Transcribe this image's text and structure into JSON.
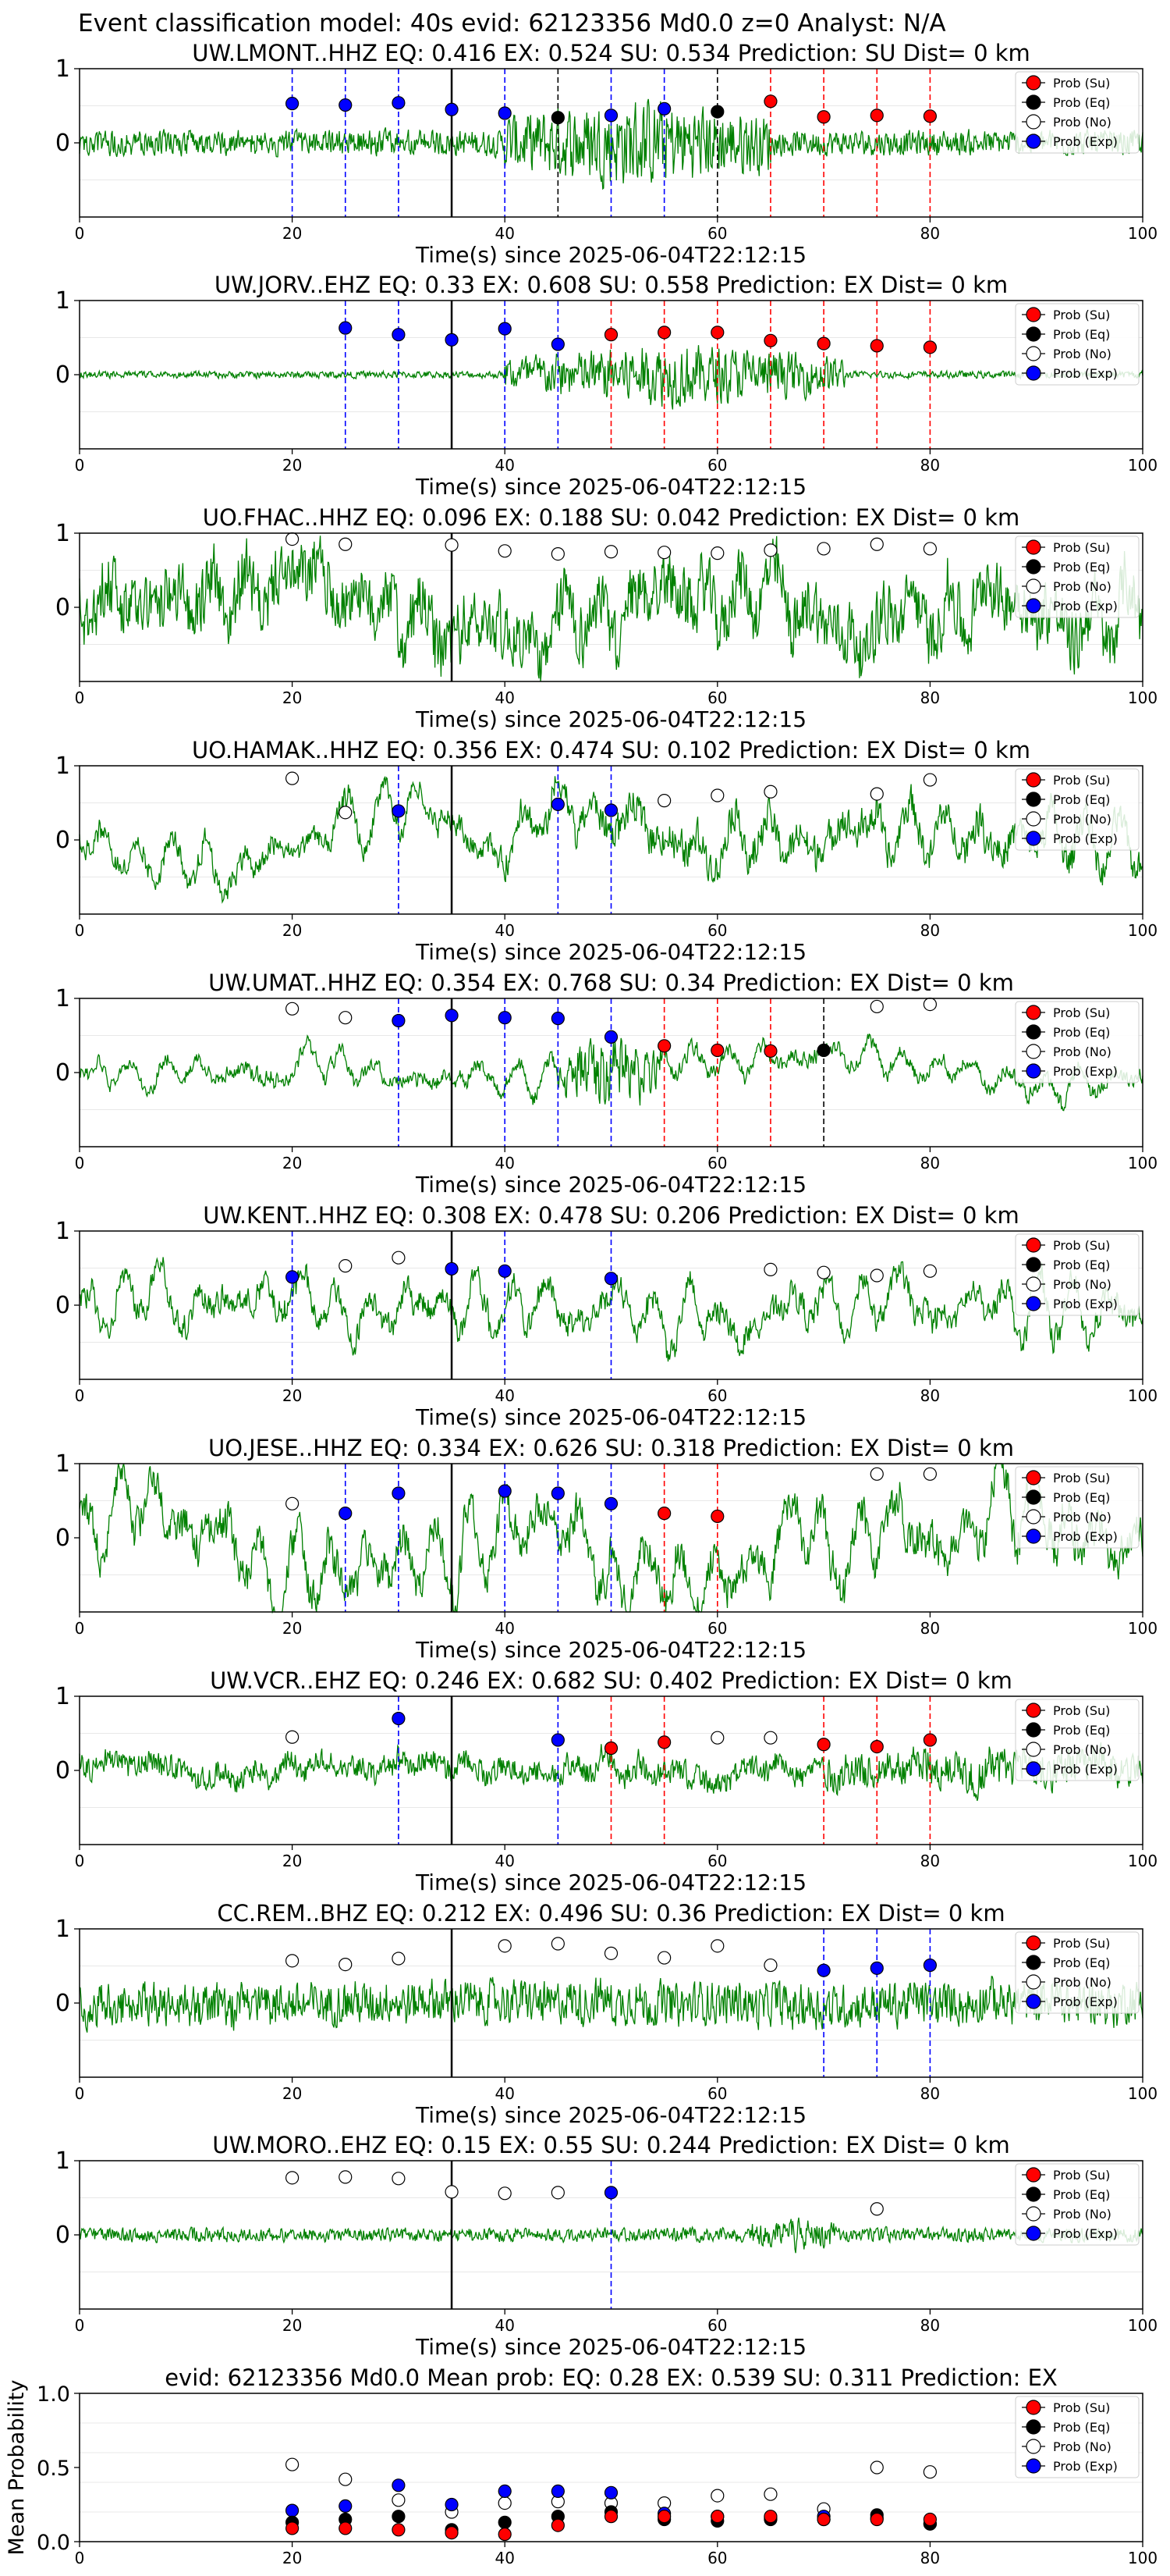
{
  "figure_title": "Event classification model: 40s evid: 62123356 Md0.0 z=0 Analyst: N/A",
  "legend_labels": [
    "Prob (Su)",
    "Prob (Eq)",
    "Prob (No)",
    "Prob (Exp)"
  ],
  "colors": {
    "su": "#ff0000",
    "eq": "#000000",
    "no": "#ffffff",
    "exp": "#0000ff",
    "trace": "#008000",
    "pick": "#000000"
  },
  "chart_data": [
    {
      "type": "line",
      "title": "UW.LMONT..HHZ   EQ: 0.416  EX: 0.524  SU: 0.534   Prediction: SU    Dist= 0 km",
      "xlabel": "Time(s) since 2025-06-04T22:12:15",
      "ylabel": "",
      "xlim": [
        0,
        100
      ],
      "ylim": [
        -1,
        1
      ],
      "xticks": [
        "0",
        "20",
        "40",
        "60",
        "80",
        "100"
      ],
      "yticks": [
        "0",
        "1"
      ],
      "pick_time": 35,
      "trace": {
        "seed": 1,
        "amplitude": 0.22,
        "burst": {
          "start": 40,
          "end": 65,
          "gain": 3.5
        },
        "lowfreq": 0
      },
      "points": [
        {
          "t": 20,
          "v": 0.53,
          "cls": "exp"
        },
        {
          "t": 25,
          "v": 0.51,
          "cls": "exp"
        },
        {
          "t": 30,
          "v": 0.54,
          "cls": "exp"
        },
        {
          "t": 35,
          "v": 0.45,
          "cls": "exp"
        },
        {
          "t": 40,
          "v": 0.4,
          "cls": "exp"
        },
        {
          "t": 45,
          "v": 0.34,
          "cls": "eq"
        },
        {
          "t": 50,
          "v": 0.37,
          "cls": "exp"
        },
        {
          "t": 55,
          "v": 0.46,
          "cls": "exp"
        },
        {
          "t": 60,
          "v": 0.42,
          "cls": "eq"
        },
        {
          "t": 65,
          "v": 0.56,
          "cls": "su"
        },
        {
          "t": 70,
          "v": 0.35,
          "cls": "su"
        },
        {
          "t": 75,
          "v": 0.37,
          "cls": "su"
        },
        {
          "t": 80,
          "v": 0.36,
          "cls": "su"
        }
      ]
    },
    {
      "type": "line",
      "title": "UW.JORV..EHZ   EQ: 0.33  EX: 0.608  SU: 0.558   Prediction: EX    Dist= 0 km",
      "xlabel": "Time(s) since 2025-06-04T22:12:15",
      "ylabel": "",
      "xlim": [
        0,
        100
      ],
      "ylim": [
        -1,
        1
      ],
      "xticks": [
        "0",
        "20",
        "40",
        "60",
        "80",
        "100"
      ],
      "yticks": [
        "0",
        "1"
      ],
      "pick_time": 35,
      "trace": {
        "seed": 2,
        "amplitude": 0.06,
        "burst": {
          "start": 40,
          "end": 72,
          "gain": 9
        },
        "lowfreq": 0
      },
      "points": [
        {
          "t": 25,
          "v": 0.63,
          "cls": "exp"
        },
        {
          "t": 30,
          "v": 0.54,
          "cls": "exp"
        },
        {
          "t": 35,
          "v": 0.47,
          "cls": "exp"
        },
        {
          "t": 40,
          "v": 0.62,
          "cls": "exp"
        },
        {
          "t": 45,
          "v": 0.41,
          "cls": "exp"
        },
        {
          "t": 50,
          "v": 0.54,
          "cls": "su"
        },
        {
          "t": 55,
          "v": 0.57,
          "cls": "su"
        },
        {
          "t": 60,
          "v": 0.57,
          "cls": "su"
        },
        {
          "t": 65,
          "v": 0.46,
          "cls": "su"
        },
        {
          "t": 70,
          "v": 0.42,
          "cls": "su"
        },
        {
          "t": 75,
          "v": 0.39,
          "cls": "su"
        },
        {
          "t": 80,
          "v": 0.37,
          "cls": "su"
        }
      ]
    },
    {
      "type": "line",
      "title": "UO.FHAC..HHZ   EQ: 0.096  EX: 0.188  SU: 0.042   Prediction: EX    Dist= 0 km",
      "xlabel": "Time(s) since 2025-06-04T22:12:15",
      "ylabel": "",
      "xlim": [
        0,
        100
      ],
      "ylim": [
        -1,
        1
      ],
      "xticks": [
        "0",
        "20",
        "40",
        "60",
        "80",
        "100"
      ],
      "yticks": [
        "0",
        "1"
      ],
      "pick_time": 35,
      "trace": {
        "seed": 3,
        "amplitude": 0.55,
        "burst": null,
        "lowfreq": 0.35
      },
      "points": [
        {
          "t": 20,
          "v": 0.92,
          "cls": "no"
        },
        {
          "t": 25,
          "v": 0.85,
          "cls": "no"
        },
        {
          "t": 35,
          "v": 0.84,
          "cls": "no"
        },
        {
          "t": 40,
          "v": 0.76,
          "cls": "no"
        },
        {
          "t": 45,
          "v": 0.72,
          "cls": "no"
        },
        {
          "t": 50,
          "v": 0.75,
          "cls": "no"
        },
        {
          "t": 55,
          "v": 0.74,
          "cls": "no"
        },
        {
          "t": 60,
          "v": 0.73,
          "cls": "no"
        },
        {
          "t": 65,
          "v": 0.77,
          "cls": "no"
        },
        {
          "t": 70,
          "v": 0.79,
          "cls": "no"
        },
        {
          "t": 75,
          "v": 0.85,
          "cls": "no"
        },
        {
          "t": 80,
          "v": 0.79,
          "cls": "no"
        }
      ]
    },
    {
      "type": "line",
      "title": "UO.HAMAK..HHZ   EQ: 0.356  EX: 0.474  SU: 0.102   Prediction: EX    Dist= 0 km",
      "xlabel": "Time(s) since 2025-06-04T22:12:15",
      "ylabel": "",
      "xlim": [
        0,
        100
      ],
      "ylim": [
        -1,
        1
      ],
      "xticks": [
        "0",
        "20",
        "40",
        "60",
        "80",
        "100"
      ],
      "yticks": [
        "0",
        "1"
      ],
      "pick_time": 35,
      "trace": {
        "seed": 4,
        "amplitude": 0.18,
        "burst": {
          "start": 40,
          "end": 100,
          "gain": 1.8
        },
        "lowfreq": 0.35
      },
      "points": [
        {
          "t": 20,
          "v": 0.83,
          "cls": "no"
        },
        {
          "t": 25,
          "v": 0.37,
          "cls": "no"
        },
        {
          "t": 30,
          "v": 0.39,
          "cls": "exp"
        },
        {
          "t": 45,
          "v": 0.48,
          "cls": "exp"
        },
        {
          "t": 50,
          "v": 0.4,
          "cls": "exp"
        },
        {
          "t": 55,
          "v": 0.53,
          "cls": "no"
        },
        {
          "t": 60,
          "v": 0.6,
          "cls": "no"
        },
        {
          "t": 65,
          "v": 0.65,
          "cls": "no"
        },
        {
          "t": 75,
          "v": 0.62,
          "cls": "no"
        },
        {
          "t": 80,
          "v": 0.81,
          "cls": "no"
        }
      ]
    },
    {
      "type": "line",
      "title": "UW.UMAT..HHZ   EQ: 0.354  EX: 0.768  SU: 0.34   Prediction: EX    Dist= 0 km",
      "xlabel": "Time(s) since 2025-06-04T22:12:15",
      "ylabel": "",
      "xlim": [
        0,
        100
      ],
      "ylim": [
        -1,
        1
      ],
      "xticks": [
        "0",
        "20",
        "40",
        "60",
        "80",
        "100"
      ],
      "yticks": [
        "0",
        "1"
      ],
      "pick_time": 35,
      "trace": {
        "seed": 5,
        "amplitude": 0.12,
        "burst": {
          "start": 45,
          "end": 55,
          "gain": 5
        },
        "lowfreq": 0.2
      },
      "points": [
        {
          "t": 20,
          "v": 0.86,
          "cls": "no"
        },
        {
          "t": 25,
          "v": 0.74,
          "cls": "no"
        },
        {
          "t": 30,
          "v": 0.7,
          "cls": "exp"
        },
        {
          "t": 35,
          "v": 0.77,
          "cls": "exp"
        },
        {
          "t": 40,
          "v": 0.74,
          "cls": "exp"
        },
        {
          "t": 45,
          "v": 0.73,
          "cls": "exp"
        },
        {
          "t": 50,
          "v": 0.48,
          "cls": "exp"
        },
        {
          "t": 55,
          "v": 0.36,
          "cls": "su"
        },
        {
          "t": 60,
          "v": 0.3,
          "cls": "su"
        },
        {
          "t": 65,
          "v": 0.29,
          "cls": "su"
        },
        {
          "t": 70,
          "v": 0.3,
          "cls": "eq"
        },
        {
          "t": 75,
          "v": 0.89,
          "cls": "no"
        },
        {
          "t": 80,
          "v": 0.92,
          "cls": "no"
        }
      ]
    },
    {
      "type": "line",
      "title": "UW.KENT..HHZ   EQ: 0.308  EX: 0.478  SU: 0.206   Prediction: EX    Dist= 0 km",
      "xlabel": "Time(s) since 2025-06-04T22:12:15",
      "ylabel": "",
      "xlim": [
        0,
        100
      ],
      "ylim": [
        -1,
        1
      ],
      "xticks": [
        "0",
        "20",
        "40",
        "60",
        "80",
        "100"
      ],
      "yticks": [
        "0",
        "1"
      ],
      "pick_time": 35,
      "trace": {
        "seed": 6,
        "amplitude": 0.2,
        "burst": null,
        "lowfreq": 0.4
      },
      "points": [
        {
          "t": 20,
          "v": 0.38,
          "cls": "exp"
        },
        {
          "t": 25,
          "v": 0.53,
          "cls": "no"
        },
        {
          "t": 30,
          "v": 0.64,
          "cls": "no"
        },
        {
          "t": 35,
          "v": 0.49,
          "cls": "exp"
        },
        {
          "t": 40,
          "v": 0.46,
          "cls": "exp"
        },
        {
          "t": 50,
          "v": 0.36,
          "cls": "exp"
        },
        {
          "t": 65,
          "v": 0.48,
          "cls": "no"
        },
        {
          "t": 70,
          "v": 0.44,
          "cls": "no"
        },
        {
          "t": 75,
          "v": 0.4,
          "cls": "no"
        },
        {
          "t": 80,
          "v": 0.46,
          "cls": "no"
        }
      ]
    },
    {
      "type": "line",
      "title": "UO.JESE..HHZ   EQ: 0.334  EX: 0.626  SU: 0.318   Prediction: EX    Dist= 0 km",
      "xlabel": "Time(s) since 2025-06-04T22:12:15",
      "ylabel": "",
      "xlim": [
        0,
        100
      ],
      "ylim": [
        -1,
        1
      ],
      "xticks": [
        "0",
        "20",
        "40",
        "60",
        "80",
        "100"
      ],
      "yticks": [
        "0",
        "1"
      ],
      "pick_time": 35,
      "trace": {
        "seed": 7,
        "amplitude": 0.3,
        "burst": null,
        "lowfreq": 0.5
      },
      "points": [
        {
          "t": 20,
          "v": 0.46,
          "cls": "no"
        },
        {
          "t": 25,
          "v": 0.33,
          "cls": "exp"
        },
        {
          "t": 30,
          "v": 0.6,
          "cls": "exp"
        },
        {
          "t": 40,
          "v": 0.63,
          "cls": "exp"
        },
        {
          "t": 45,
          "v": 0.6,
          "cls": "exp"
        },
        {
          "t": 50,
          "v": 0.46,
          "cls": "exp"
        },
        {
          "t": 55,
          "v": 0.33,
          "cls": "su"
        },
        {
          "t": 60,
          "v": 0.29,
          "cls": "su"
        },
        {
          "t": 75,
          "v": 0.86,
          "cls": "no"
        },
        {
          "t": 80,
          "v": 0.86,
          "cls": "no"
        }
      ]
    },
    {
      "type": "line",
      "title": "UW.VCR..EHZ   EQ: 0.246  EX: 0.682  SU: 0.402   Prediction: EX    Dist= 0 km",
      "xlabel": "Time(s) since 2025-06-04T22:12:15",
      "ylabel": "",
      "xlim": [
        0,
        100
      ],
      "ylim": [
        -1,
        1
      ],
      "xticks": [
        "0",
        "20",
        "40",
        "60",
        "80",
        "100"
      ],
      "yticks": [
        "0",
        "1"
      ],
      "pick_time": 35,
      "trace": {
        "seed": 8,
        "amplitude": 0.22,
        "burst": {
          "start": 70,
          "end": 100,
          "gain": 1.6
        },
        "lowfreq": 0.1
      },
      "points": [
        {
          "t": 20,
          "v": 0.45,
          "cls": "no"
        },
        {
          "t": 30,
          "v": 0.7,
          "cls": "exp"
        },
        {
          "t": 45,
          "v": 0.41,
          "cls": "exp"
        },
        {
          "t": 50,
          "v": 0.3,
          "cls": "su"
        },
        {
          "t": 55,
          "v": 0.38,
          "cls": "su"
        },
        {
          "t": 60,
          "v": 0.44,
          "cls": "no"
        },
        {
          "t": 65,
          "v": 0.44,
          "cls": "no"
        },
        {
          "t": 70,
          "v": 0.35,
          "cls": "su"
        },
        {
          "t": 75,
          "v": 0.32,
          "cls": "su"
        },
        {
          "t": 80,
          "v": 0.41,
          "cls": "su"
        }
      ]
    },
    {
      "type": "line",
      "title": "CC.REM..BHZ   EQ: 0.212  EX: 0.496  SU: 0.36   Prediction: EX    Dist= 0 km",
      "xlabel": "Time(s) since 2025-06-04T22:12:15",
      "ylabel": "",
      "xlim": [
        0,
        100
      ],
      "ylim": [
        -1,
        1
      ],
      "xticks": [
        "0",
        "20",
        "40",
        "60",
        "80",
        "100"
      ],
      "yticks": [
        "0",
        "1"
      ],
      "pick_time": 35,
      "trace": {
        "seed": 9,
        "amplitude": 0.38,
        "burst": null,
        "lowfreq": 0.05
      },
      "points": [
        {
          "t": 20,
          "v": 0.57,
          "cls": "no"
        },
        {
          "t": 25,
          "v": 0.52,
          "cls": "no"
        },
        {
          "t": 30,
          "v": 0.6,
          "cls": "no"
        },
        {
          "t": 40,
          "v": 0.77,
          "cls": "no"
        },
        {
          "t": 45,
          "v": 0.8,
          "cls": "no"
        },
        {
          "t": 50,
          "v": 0.67,
          "cls": "no"
        },
        {
          "t": 55,
          "v": 0.61,
          "cls": "no"
        },
        {
          "t": 60,
          "v": 0.77,
          "cls": "no"
        },
        {
          "t": 65,
          "v": 0.51,
          "cls": "no"
        },
        {
          "t": 70,
          "v": 0.44,
          "cls": "exp"
        },
        {
          "t": 75,
          "v": 0.47,
          "cls": "exp"
        },
        {
          "t": 80,
          "v": 0.51,
          "cls": "exp"
        }
      ]
    },
    {
      "type": "line",
      "title": "UW.MORO..EHZ   EQ: 0.15  EX: 0.55  SU: 0.244   Prediction: EX    Dist= 0 km",
      "xlabel": "Time(s) since 2025-06-04T22:12:15",
      "ylabel": "",
      "xlim": [
        0,
        100
      ],
      "ylim": [
        -1,
        1
      ],
      "xticks": [
        "0",
        "20",
        "40",
        "60",
        "80",
        "100"
      ],
      "yticks": [
        "0",
        "1"
      ],
      "pick_time": 35,
      "trace": {
        "seed": 10,
        "amplitude": 0.12,
        "burst": {
          "start": 63,
          "end": 71,
          "gain": 2.5
        },
        "lowfreq": 0
      },
      "points": [
        {
          "t": 20,
          "v": 0.77,
          "cls": "no"
        },
        {
          "t": 25,
          "v": 0.78,
          "cls": "no"
        },
        {
          "t": 30,
          "v": 0.76,
          "cls": "no"
        },
        {
          "t": 35,
          "v": 0.58,
          "cls": "no"
        },
        {
          "t": 40,
          "v": 0.56,
          "cls": "no"
        },
        {
          "t": 45,
          "v": 0.57,
          "cls": "no"
        },
        {
          "t": 50,
          "v": 0.57,
          "cls": "exp"
        },
        {
          "t": 75,
          "v": 0.35,
          "cls": "no"
        }
      ]
    },
    {
      "type": "scatter",
      "title": "evid: 62123356  Md0.0   Mean prob:   EQ: 0.28  EX: 0.539  SU: 0.311   Prediction: EX",
      "xlabel": "",
      "ylabel": "Mean Probability",
      "xlim": [
        0,
        100
      ],
      "ylim": [
        0,
        1
      ],
      "xticks": [
        "0",
        "20",
        "40",
        "60",
        "80",
        "100"
      ],
      "yticks": [
        "0.0",
        "0.5",
        "1.0"
      ],
      "series": [
        {
          "name": "Prob (No)",
          "cls": "no",
          "x": [
            20,
            25,
            30,
            35,
            40,
            45,
            50,
            55,
            60,
            65,
            70,
            75,
            80
          ],
          "y": [
            0.52,
            0.42,
            0.28,
            0.2,
            0.26,
            0.27,
            0.26,
            0.26,
            0.31,
            0.32,
            0.22,
            0.5,
            0.47
          ]
        },
        {
          "name": "Prob (Exp)",
          "cls": "exp",
          "x": [
            20,
            25,
            30,
            35,
            40,
            45,
            50,
            55,
            60,
            65,
            70,
            75,
            80
          ],
          "y": [
            0.21,
            0.24,
            0.38,
            0.25,
            0.34,
            0.34,
            0.33,
            0.19,
            0.17,
            0.16,
            0.17,
            0.16,
            0.12
          ]
        },
        {
          "name": "Prob (Eq)",
          "cls": "eq",
          "x": [
            20,
            25,
            30,
            35,
            40,
            45,
            50,
            55,
            60,
            65,
            70,
            75,
            80
          ],
          "y": [
            0.13,
            0.15,
            0.17,
            0.08,
            0.13,
            0.17,
            0.2,
            0.15,
            0.14,
            0.15,
            0.15,
            0.18,
            0.12
          ]
        },
        {
          "name": "Prob (Su)",
          "cls": "su",
          "x": [
            20,
            25,
            30,
            35,
            40,
            45,
            50,
            55,
            60,
            65,
            70,
            75,
            80
          ],
          "y": [
            0.09,
            0.09,
            0.08,
            0.06,
            0.05,
            0.11,
            0.17,
            0.17,
            0.17,
            0.17,
            0.15,
            0.15,
            0.15
          ]
        }
      ]
    }
  ]
}
